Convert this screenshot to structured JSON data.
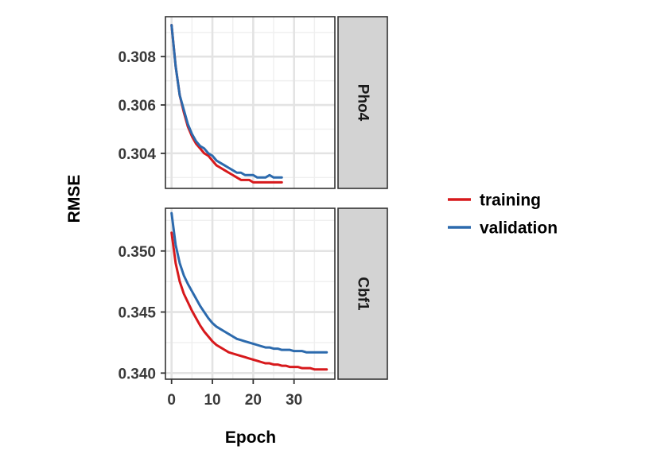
{
  "chart_data": {
    "type": "line",
    "xlabel": "Epoch",
    "ylabel": "RMSE",
    "x_ticks": [
      0,
      10,
      20,
      30
    ],
    "xlim": [
      -1.5,
      40
    ],
    "grid": true,
    "legend": {
      "placement": "right",
      "entries": [
        {
          "name": "training",
          "color": "#d7191c"
        },
        {
          "name": "validation",
          "color": "#2c6aad"
        }
      ]
    },
    "panels": [
      {
        "strip": "Pho4",
        "ylim": [
          0.30255,
          0.30965
        ],
        "y_ticks": [
          0.304,
          0.306,
          0.308
        ],
        "y_tick_labels": [
          "0.304",
          "0.306",
          "0.308"
        ],
        "series": [
          {
            "name": "training",
            "color": "#d7191c",
            "x": [
              0,
              1,
              2,
              3,
              4,
              5,
              6,
              7,
              8,
              9,
              10,
              11,
              12,
              13,
              14,
              15,
              16,
              17,
              18,
              19,
              20,
              21,
              22,
              23,
              24,
              25,
              26,
              27
            ],
            "y": [
              0.3093,
              0.3076,
              0.3064,
              0.3057,
              0.3051,
              0.3047,
              0.3044,
              0.3042,
              0.304,
              0.3039,
              0.3037,
              0.3035,
              0.3034,
              0.3033,
              0.3032,
              0.3031,
              0.303,
              0.3029,
              0.3029,
              0.3029,
              0.3028,
              0.3028,
              0.3028,
              0.3028,
              0.3028,
              0.3028,
              0.3028,
              0.3028
            ]
          },
          {
            "name": "validation",
            "color": "#2c6aad",
            "x": [
              0,
              1,
              2,
              3,
              4,
              5,
              6,
              7,
              8,
              9,
              10,
              11,
              12,
              13,
              14,
              15,
              16,
              17,
              18,
              19,
              20,
              21,
              22,
              23,
              24,
              25,
              26,
              27
            ],
            "y": [
              0.3093,
              0.3076,
              0.3064,
              0.3058,
              0.3052,
              0.3048,
              0.3045,
              0.3043,
              0.3042,
              0.304,
              0.3039,
              0.3037,
              0.3036,
              0.3035,
              0.3034,
              0.3033,
              0.3032,
              0.3032,
              0.3031,
              0.3031,
              0.3031,
              0.303,
              0.303,
              0.303,
              0.3031,
              0.303,
              0.303,
              0.303
            ]
          }
        ]
      },
      {
        "strip": "Cbf1",
        "ylim": [
          0.3395,
          0.3535
        ],
        "y_ticks": [
          0.34,
          0.345,
          0.35
        ],
        "y_tick_labels": [
          "0.340",
          "0.345",
          "0.350"
        ],
        "series": [
          {
            "name": "training",
            "color": "#d7191c",
            "x": [
              0,
              1,
              2,
              3,
              4,
              5,
              6,
              7,
              8,
              9,
              10,
              11,
              12,
              13,
              14,
              15,
              16,
              17,
              18,
              19,
              20,
              21,
              22,
              23,
              24,
              25,
              26,
              27,
              28,
              29,
              30,
              31,
              32,
              33,
              34,
              35,
              36,
              37,
              38
            ],
            "y": [
              0.3515,
              0.349,
              0.3475,
              0.3465,
              0.3458,
              0.3451,
              0.3445,
              0.3439,
              0.3434,
              0.343,
              0.3426,
              0.3423,
              0.3421,
              0.3419,
              0.3417,
              0.3416,
              0.3415,
              0.3414,
              0.3413,
              0.3412,
              0.3411,
              0.341,
              0.3409,
              0.3408,
              0.3408,
              0.3407,
              0.3407,
              0.3406,
              0.3406,
              0.3405,
              0.3405,
              0.3405,
              0.3404,
              0.3404,
              0.3404,
              0.3403,
              0.3403,
              0.3403,
              0.3403
            ]
          },
          {
            "name": "validation",
            "color": "#2c6aad",
            "x": [
              0,
              1,
              2,
              3,
              4,
              5,
              6,
              7,
              8,
              9,
              10,
              11,
              12,
              13,
              14,
              15,
              16,
              17,
              18,
              19,
              20,
              21,
              22,
              23,
              24,
              25,
              26,
              27,
              28,
              29,
              30,
              31,
              32,
              33,
              34,
              35,
              36,
              37,
              38
            ],
            "y": [
              0.3531,
              0.3505,
              0.349,
              0.348,
              0.3473,
              0.3467,
              0.3461,
              0.3455,
              0.345,
              0.3445,
              0.3441,
              0.3438,
              0.3436,
              0.3434,
              0.3432,
              0.343,
              0.3428,
              0.3427,
              0.3426,
              0.3425,
              0.3424,
              0.3423,
              0.3422,
              0.3421,
              0.3421,
              0.342,
              0.342,
              0.3419,
              0.3419,
              0.3419,
              0.3418,
              0.3418,
              0.3418,
              0.3417,
              0.3417,
              0.3417,
              0.3417,
              0.3417,
              0.3417
            ]
          }
        ]
      }
    ]
  }
}
